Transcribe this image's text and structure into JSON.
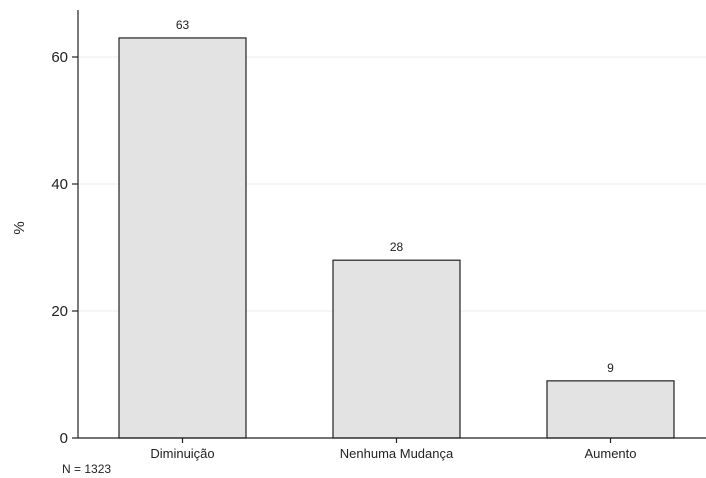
{
  "chart_data": {
    "type": "bar",
    "categories": [
      "Diminuição",
      "Nenhuma Mudança",
      "Aumento"
    ],
    "values": [
      63,
      28,
      9
    ],
    "data_labels": [
      "63",
      "28",
      "9"
    ],
    "title": "",
    "xlabel": "",
    "ylabel": "%",
    "ylim": [
      0,
      66
    ],
    "yticks": [
      0,
      20,
      40,
      60
    ],
    "ytick_labels": [
      "0",
      "20",
      "40",
      "60"
    ],
    "grid": true,
    "bar_color": "#e3e3e3",
    "bar_edge_color": "#222222",
    "grid_color": "#ececec"
  },
  "note": "N = 1323"
}
